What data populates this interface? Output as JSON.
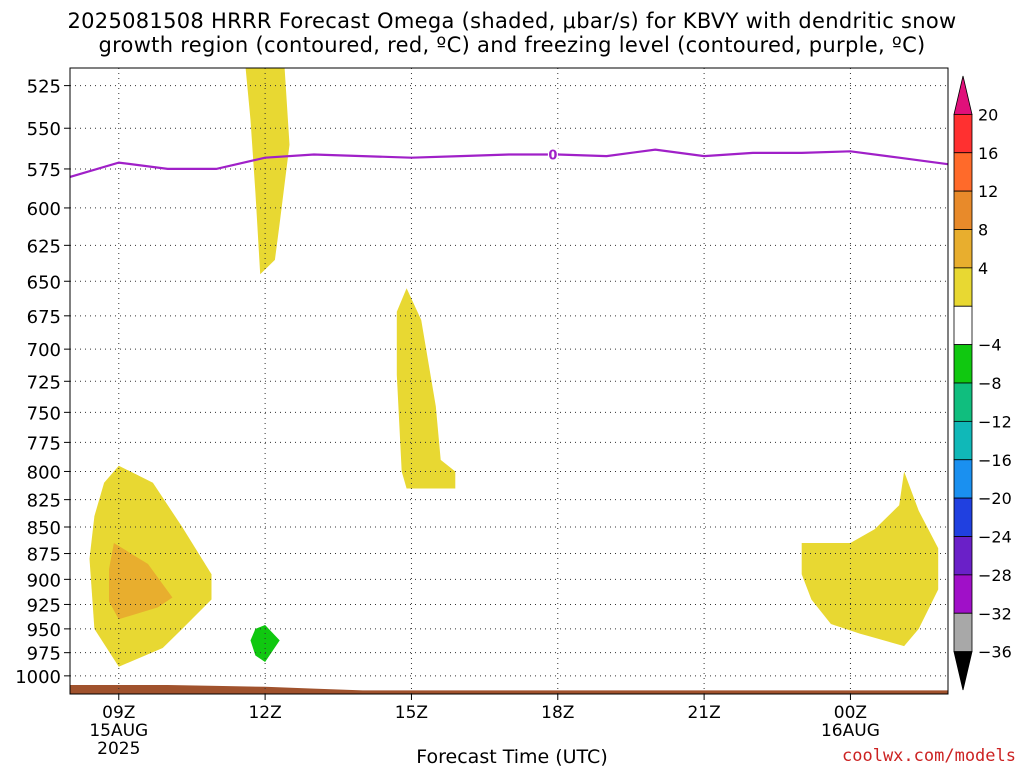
{
  "title": {
    "line1": "2025081508 HRRR Forecast Omega (shaded, μbar/s) for KBVY with dendritic snow",
    "line2": "growth region (contoured, red, ºC) and freezing level (contoured, purple, ºC)"
  },
  "credit": "coolwx.com/models",
  "chart_data": {
    "type": "heatmap",
    "xlabel": "Forecast Time (UTC)",
    "x_unit": "hours since 2025-08-15 00Z",
    "xlim": [
      7,
      25
    ],
    "x_ticks": [
      {
        "x": 8,
        "lines": [
          "09Z",
          "15AUG",
          "2025"
        ]
      },
      {
        "x": 11,
        "lines": [
          "12Z"
        ]
      },
      {
        "x": 14,
        "lines": [
          "15Z"
        ]
      },
      {
        "x": 17,
        "lines": [
          "18Z"
        ]
      },
      {
        "x": 20,
        "lines": [
          "21Z"
        ]
      },
      {
        "x": 23,
        "lines": [
          "00Z",
          "16AUG"
        ]
      }
    ],
    "y_axis": {
      "reversed": true,
      "scale": "log-pressure",
      "ylim": [
        1020,
        515
      ],
      "ticks": [
        525,
        550,
        575,
        600,
        625,
        650,
        675,
        700,
        725,
        750,
        775,
        800,
        825,
        850,
        875,
        900,
        925,
        950,
        975,
        1000
      ]
    },
    "grid": true,
    "colorbar": {
      "labels": [
        "20",
        "16",
        "12",
        "8",
        "4",
        "−4",
        "−8",
        "−12",
        "−16",
        "−20",
        "−24",
        "−28",
        "−32",
        "−36"
      ],
      "segments": [
        {
          "color": "#e0107a",
          "shape": "triangle-top"
        },
        {
          "color": "#ff3030"
        },
        {
          "color": "#ff6a2a"
        },
        {
          "color": "#e88a2a"
        },
        {
          "color": "#e8ae2e"
        },
        {
          "color": "#e8d832"
        },
        {
          "color": "#ffffff"
        },
        {
          "color": "#10c810"
        },
        {
          "color": "#10be7e"
        },
        {
          "color": "#10b8b8"
        },
        {
          "color": "#1a90f0"
        },
        {
          "color": "#2040e0"
        },
        {
          "color": "#6a20c8"
        },
        {
          "color": "#a010c8"
        },
        {
          "color": "#a8a8a8"
        },
        {
          "color": "#000000",
          "shape": "triangle-bottom"
        }
      ]
    },
    "freezing_level": {
      "color": "#a020c8",
      "label": "0",
      "label_x": 16.9,
      "points": [
        [
          7,
          580
        ],
        [
          8,
          571
        ],
        [
          9,
          575
        ],
        [
          10,
          575
        ],
        [
          11,
          568
        ],
        [
          12,
          566
        ],
        [
          13,
          567
        ],
        [
          14,
          568
        ],
        [
          15,
          567
        ],
        [
          16,
          566
        ],
        [
          17,
          566
        ],
        [
          18,
          567
        ],
        [
          19,
          563
        ],
        [
          20,
          567
        ],
        [
          21,
          565
        ],
        [
          22,
          565
        ],
        [
          23,
          564
        ],
        [
          24,
          568
        ],
        [
          25,
          572
        ]
      ]
    },
    "omega_regions": [
      {
        "level": "4 to 8",
        "color": "#e8d832",
        "points": [
          [
            10.6,
            515
          ],
          [
            11.4,
            515
          ],
          [
            11.5,
            560
          ],
          [
            11.3,
            610
          ],
          [
            11.2,
            635
          ],
          [
            10.9,
            645
          ],
          [
            10.8,
            590
          ],
          [
            10.7,
            545
          ]
        ]
      },
      {
        "level": "4 to 8",
        "color": "#e8d832",
        "points": [
          [
            13.9,
            655
          ],
          [
            14.2,
            678
          ],
          [
            14.5,
            745
          ],
          [
            14.6,
            790
          ],
          [
            14.9,
            800
          ],
          [
            14.9,
            815
          ],
          [
            13.9,
            815
          ],
          [
            13.8,
            800
          ],
          [
            13.7,
            720
          ],
          [
            13.7,
            672
          ]
        ]
      },
      {
        "level": "4 to 8",
        "color": "#e8d832",
        "points": [
          [
            8.0,
            795
          ],
          [
            8.7,
            810
          ],
          [
            9.3,
            850
          ],
          [
            9.9,
            895
          ],
          [
            9.9,
            920
          ],
          [
            9.3,
            950
          ],
          [
            8.9,
            970
          ],
          [
            8.0,
            990
          ],
          [
            7.5,
            950
          ],
          [
            7.4,
            880
          ],
          [
            7.5,
            840
          ],
          [
            7.7,
            810
          ]
        ]
      },
      {
        "level": "8 to 12",
        "color": "#e8ae2e",
        "points": [
          [
            7.9,
            865
          ],
          [
            8.6,
            885
          ],
          [
            9.1,
            918
          ],
          [
            8.8,
            928
          ],
          [
            8.0,
            940
          ],
          [
            7.8,
            922
          ],
          [
            7.8,
            890
          ]
        ]
      },
      {
        "level": "4 to 8",
        "color": "#e8d832",
        "points": [
          [
            22.0,
            865
          ],
          [
            23.0,
            865
          ],
          [
            23.5,
            852
          ],
          [
            24.0,
            830
          ],
          [
            24.1,
            800
          ],
          [
            24.4,
            835
          ],
          [
            24.8,
            870
          ],
          [
            24.8,
            910
          ],
          [
            24.4,
            950
          ],
          [
            24.1,
            968
          ],
          [
            23.2,
            955
          ],
          [
            22.6,
            945
          ],
          [
            22.2,
            920
          ],
          [
            22.0,
            895
          ]
        ]
      },
      {
        "level": "-8 to -4",
        "color": "#10c810",
        "points": [
          [
            11.0,
            946
          ],
          [
            11.3,
            962
          ],
          [
            11.0,
            985
          ],
          [
            10.8,
            978
          ],
          [
            10.7,
            962
          ],
          [
            10.8,
            950
          ]
        ]
      }
    ],
    "terrain": {
      "color": "#a0522d",
      "points": [
        [
          7,
          1010
        ],
        [
          9,
          1010
        ],
        [
          10,
          1011
        ],
        [
          11,
          1012
        ],
        [
          12,
          1014
        ],
        [
          13,
          1016
        ],
        [
          25,
          1016
        ],
        [
          25,
          1020
        ],
        [
          7,
          1020
        ]
      ]
    }
  }
}
